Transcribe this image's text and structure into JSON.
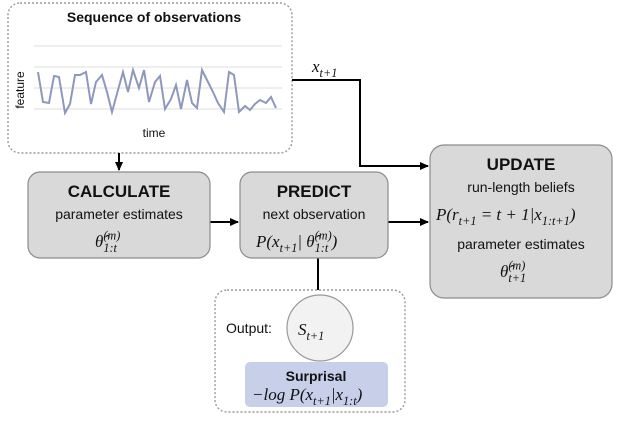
{
  "sequence_panel": {
    "title": "Sequence of observations",
    "y_label": "feature",
    "x_label": "time"
  },
  "input_label": [
    {
      "t": "x"
    },
    {
      "sub": "t+1"
    }
  ],
  "calculate": {
    "title": "CALCULATE",
    "subtitle": "parameter estimates",
    "formula": [
      {
        "t": "θ̂"
      },
      {
        "sub": "1:t",
        "sup": "(m)"
      }
    ]
  },
  "predict": {
    "title": "PREDICT",
    "subtitle": "next observation",
    "formula": [
      {
        "t": "P(x"
      },
      {
        "sub": "t+1"
      },
      {
        "t": "| θ̂"
      },
      {
        "sub": "1:t",
        "sup": "(m)"
      },
      {
        "t": ")"
      }
    ]
  },
  "update": {
    "title": "UPDATE",
    "subtitle": "run-length beliefs",
    "formula": [
      {
        "t": "P(r"
      },
      {
        "sub": "t+1"
      },
      {
        "t": " = t + 1|x"
      },
      {
        "sub": "1:t+1"
      },
      {
        "t": ")"
      }
    ],
    "subtitle2": "parameter estimates",
    "formula2": [
      {
        "t": "θ̂"
      },
      {
        "sub": "t+1",
        "sup": "(m)"
      }
    ]
  },
  "output": {
    "label": "Output:",
    "symbol": [
      {
        "t": "S"
      },
      {
        "sub": "t+1"
      }
    ],
    "box_title": "Surprisal",
    "box_formula": [
      {
        "t": "−log P(x"
      },
      {
        "sub": "t+1"
      },
      {
        "t": "|x"
      },
      {
        "sub": "1:t"
      },
      {
        "t": ")"
      }
    ]
  }
}
